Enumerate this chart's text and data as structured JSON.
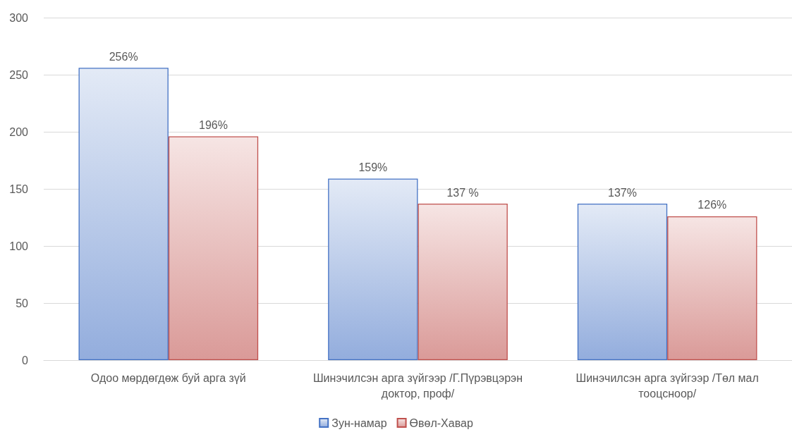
{
  "chart_data": {
    "type": "bar",
    "categories": [
      "Одоо мөрдөгдөж буй арга зүй",
      "Шинэчилсэн арга зүйгээр /Г.Пүрэвцэрэн доктор, проф/",
      "Шинэчилсэн арга зүйгээр /Төл мал тооцсноор/"
    ],
    "series": [
      {
        "name": "Зун-намар",
        "color": "#4472c4",
        "values": [
          256,
          159,
          137
        ],
        "value_labels": [
          "256%",
          "159%",
          "137%"
        ]
      },
      {
        "name": "Өвөл-Хавар",
        "color": "#c0504d",
        "values": [
          196,
          137,
          126
        ],
        "value_labels": [
          "196%",
          "137 %",
          "126%"
        ]
      }
    ],
    "ylim": [
      0,
      300
    ],
    "yticks": [
      0,
      50,
      100,
      150,
      200,
      250,
      300
    ],
    "grid": "y",
    "legend": "bottom"
  }
}
